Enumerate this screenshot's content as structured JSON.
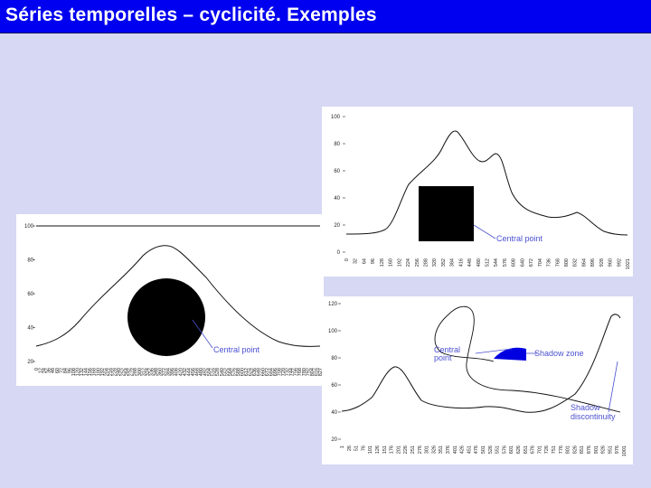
{
  "header": {
    "title": "Séries temporelles – cyclicité. Exemples"
  },
  "chart_data": [
    {
      "type": "line",
      "y_ticks": [
        "100",
        "80",
        "60",
        "40",
        "20",
        "0"
      ],
      "x_ticks": [
        "0",
        "32",
        "64",
        "96",
        "128",
        "160",
        "192",
        "224",
        "256",
        "288",
        "320",
        "352",
        "384",
        "416",
        "448",
        "480",
        "512",
        "544",
        "576",
        "608",
        "640",
        "672",
        "704",
        "736",
        "768",
        "800",
        "832",
        "864",
        "896",
        "928",
        "960",
        "992",
        "1021"
      ],
      "annotations": [
        "Central point"
      ],
      "colors": {
        "line": "#111111",
        "marker": "#000000",
        "annotation": "#4a50d0"
      }
    },
    {
      "type": "line",
      "y_ticks": [
        "100",
        "80",
        "60",
        "40",
        "20"
      ],
      "x_ticks": [
        "0",
        "12",
        "24",
        "36",
        "48",
        "60",
        "72",
        "84",
        "96",
        "108",
        "120",
        "132",
        "144",
        "156",
        "168",
        "180",
        "192",
        "204",
        "216",
        "228",
        "240",
        "252",
        "264",
        "276",
        "288",
        "300",
        "312",
        "324",
        "336",
        "348",
        "360",
        "372",
        "384",
        "396",
        "408",
        "420",
        "432",
        "444",
        "456",
        "468",
        "480",
        "492",
        "504",
        "516",
        "528",
        "540",
        "552",
        "564",
        "576",
        "588",
        "600",
        "612",
        "624",
        "636",
        "648",
        "660",
        "672",
        "684",
        "696",
        "708",
        "720",
        "732",
        "744",
        "756",
        "768",
        "780",
        "792",
        "804",
        "816",
        "827"
      ],
      "annotations": [
        "Central point"
      ],
      "colors": {
        "line": "#111111",
        "marker": "#000000",
        "annotation": "#4a50d0"
      }
    },
    {
      "type": "line",
      "y_ticks": [
        "120",
        "100",
        "80",
        "60",
        "40",
        "20"
      ],
      "x_ticks": [
        "1",
        "26",
        "51",
        "76",
        "101",
        "126",
        "151",
        "176",
        "201",
        "226",
        "251",
        "276",
        "301",
        "326",
        "351",
        "376",
        "401",
        "426",
        "451",
        "476",
        "501",
        "526",
        "551",
        "576",
        "601",
        "626",
        "651",
        "676",
        "701",
        "726",
        "751",
        "776",
        "801",
        "826",
        "851",
        "876",
        "901",
        "926",
        "951",
        "976",
        "1001"
      ],
      "annotations": [
        "Central point",
        "Shadow zone",
        "Shadow discontinuity"
      ],
      "colors": {
        "line": "#111111",
        "shadow": "#0000e0",
        "annotation": "#4a50d0"
      }
    }
  ]
}
